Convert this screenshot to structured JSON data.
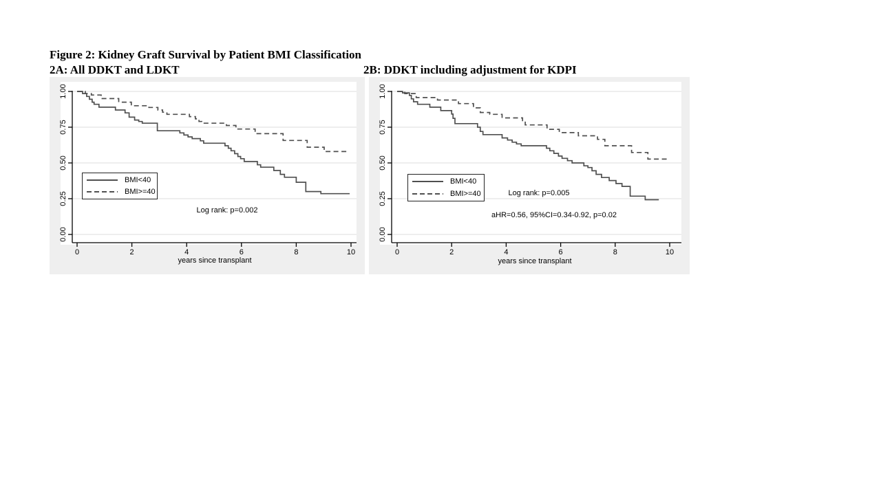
{
  "figure": {
    "title": "Figure 2: Kidney Graft Survival by Patient BMI Classification",
    "panel_a_heading": "2A: All DDKT and LDKT",
    "panel_b_heading": "2B: DDKT including adjustment for KDPI"
  },
  "colors": {
    "panel_background": "#efefef",
    "plot_background": "#ffffff",
    "gridline": "#e4e4e4",
    "axis": "#000000",
    "curve": "#4f4f4f"
  },
  "chart_data": [
    {
      "id": "2A",
      "type": "line",
      "subtype": "kaplan-meier-step",
      "title": "2A: All DDKT and LDKT",
      "xlabel": "years since transplant",
      "ylabel": "",
      "xlim": [
        0,
        10
      ],
      "ylim": [
        0,
        1
      ],
      "xticks": [
        "0",
        "2",
        "4",
        "6",
        "8",
        "10"
      ],
      "yticks": [
        "0.00",
        "0.25",
        "0.50",
        "0.75",
        "1.00"
      ],
      "grid": "horizontal",
      "legend": {
        "position": "inside-middle-left",
        "entries": [
          {
            "label": "BMI<40",
            "line_style": "solid"
          },
          {
            "label": "BMI>=40",
            "line_style": "dashed"
          }
        ]
      },
      "annotations": [
        {
          "text": "Log rank: p=0.002"
        }
      ],
      "series": [
        {
          "name": "BMI<40",
          "line_style": "solid",
          "step_points": [
            [
              0,
              1.0
            ],
            [
              0.2,
              0.985
            ],
            [
              0.35,
              0.965
            ],
            [
              0.45,
              0.945
            ],
            [
              0.55,
              0.925
            ],
            [
              0.62,
              0.91
            ],
            [
              0.8,
              0.89
            ],
            [
              1.4,
              0.87
            ],
            [
              1.75,
              0.85
            ],
            [
              1.9,
              0.82
            ],
            [
              2.1,
              0.8
            ],
            [
              2.25,
              0.79
            ],
            [
              2.38,
              0.778
            ],
            [
              2.93,
              0.725
            ],
            [
              3.75,
              0.71
            ],
            [
              3.9,
              0.695
            ],
            [
              4.05,
              0.682
            ],
            [
              4.2,
              0.67
            ],
            [
              4.5,
              0.655
            ],
            [
              4.62,
              0.638
            ],
            [
              5.4,
              0.62
            ],
            [
              5.52,
              0.603
            ],
            [
              5.62,
              0.585
            ],
            [
              5.75,
              0.565
            ],
            [
              5.87,
              0.545
            ],
            [
              5.97,
              0.53
            ],
            [
              6.1,
              0.51
            ],
            [
              6.58,
              0.487
            ],
            [
              6.7,
              0.47
            ],
            [
              7.18,
              0.447
            ],
            [
              7.42,
              0.42
            ],
            [
              7.57,
              0.4
            ],
            [
              8.0,
              0.365
            ],
            [
              8.35,
              0.3
            ],
            [
              8.9,
              0.285
            ],
            [
              9.95,
              0.285
            ]
          ]
        },
        {
          "name": "BMI>=40",
          "line_style": "dashed",
          "step_points": [
            [
              0,
              1.0
            ],
            [
              0.3,
              0.985
            ],
            [
              0.52,
              0.975
            ],
            [
              0.88,
              0.95
            ],
            [
              1.52,
              0.925
            ],
            [
              1.98,
              0.9
            ],
            [
              2.62,
              0.888
            ],
            [
              2.95,
              0.87
            ],
            [
              3.12,
              0.855
            ],
            [
              3.28,
              0.84
            ],
            [
              4.1,
              0.824
            ],
            [
              4.32,
              0.808
            ],
            [
              4.45,
              0.79
            ],
            [
              4.55,
              0.778
            ],
            [
              5.45,
              0.762
            ],
            [
              5.8,
              0.737
            ],
            [
              6.5,
              0.705
            ],
            [
              7.52,
              0.657
            ],
            [
              8.4,
              0.61
            ],
            [
              9.02,
              0.58
            ],
            [
              9.9,
              0.58
            ]
          ]
        }
      ]
    },
    {
      "id": "2B",
      "type": "line",
      "subtype": "kaplan-meier-step",
      "title": "2B: DDKT including adjustment for KDPI",
      "xlabel": "years since transplant",
      "ylabel": "",
      "xlim": [
        0,
        10
      ],
      "ylim": [
        0,
        1
      ],
      "xticks": [
        "0",
        "2",
        "4",
        "6",
        "8",
        "10"
      ],
      "yticks": [
        "0.00",
        "0.25",
        "0.50",
        "0.75",
        "1.00"
      ],
      "grid": "horizontal",
      "legend": {
        "position": "inside-middle-left",
        "entries": [
          {
            "label": "BMI<40",
            "line_style": "solid"
          },
          {
            "label": "BMI>=40",
            "line_style": "dashed"
          }
        ]
      },
      "annotations": [
        {
          "text": "Log rank: p=0.005"
        },
        {
          "text": "aHR=0.56, 95%CI=0.34-0.92, p=0.02"
        }
      ],
      "series": [
        {
          "name": "BMI<40",
          "line_style": "solid",
          "step_points": [
            [
              0,
              1.0
            ],
            [
              0.2,
              0.99
            ],
            [
              0.45,
              0.972
            ],
            [
              0.52,
              0.948
            ],
            [
              0.6,
              0.928
            ],
            [
              0.75,
              0.91
            ],
            [
              1.2,
              0.89
            ],
            [
              1.6,
              0.866
            ],
            [
              2.0,
              0.842
            ],
            [
              2.05,
              0.812
            ],
            [
              2.12,
              0.775
            ],
            [
              2.95,
              0.75
            ],
            [
              3.05,
              0.72
            ],
            [
              3.15,
              0.698
            ],
            [
              3.85,
              0.675
            ],
            [
              4.05,
              0.66
            ],
            [
              4.22,
              0.645
            ],
            [
              4.38,
              0.633
            ],
            [
              4.55,
              0.62
            ],
            [
              5.48,
              0.603
            ],
            [
              5.6,
              0.585
            ],
            [
              5.75,
              0.567
            ],
            [
              5.92,
              0.548
            ],
            [
              6.05,
              0.532
            ],
            [
              6.25,
              0.516
            ],
            [
              6.42,
              0.5
            ],
            [
              6.85,
              0.48
            ],
            [
              7.0,
              0.468
            ],
            [
              7.15,
              0.445
            ],
            [
              7.3,
              0.42
            ],
            [
              7.5,
              0.398
            ],
            [
              7.78,
              0.377
            ],
            [
              8.03,
              0.356
            ],
            [
              8.25,
              0.336
            ],
            [
              8.55,
              0.268
            ],
            [
              9.1,
              0.243
            ],
            [
              9.6,
              0.243
            ]
          ]
        },
        {
          "name": "BMI>=40",
          "line_style": "dashed",
          "step_points": [
            [
              0,
              1.0
            ],
            [
              0.28,
              0.985
            ],
            [
              0.7,
              0.957
            ],
            [
              1.48,
              0.94
            ],
            [
              2.25,
              0.915
            ],
            [
              2.8,
              0.885
            ],
            [
              3.05,
              0.853
            ],
            [
              3.4,
              0.84
            ],
            [
              3.85,
              0.815
            ],
            [
              4.6,
              0.79
            ],
            [
              4.7,
              0.766
            ],
            [
              5.5,
              0.735
            ],
            [
              5.95,
              0.712
            ],
            [
              6.65,
              0.69
            ],
            [
              7.35,
              0.665
            ],
            [
              7.62,
              0.62
            ],
            [
              8.6,
              0.573
            ],
            [
              9.2,
              0.527
            ],
            [
              9.95,
              0.527
            ]
          ]
        }
      ]
    }
  ]
}
